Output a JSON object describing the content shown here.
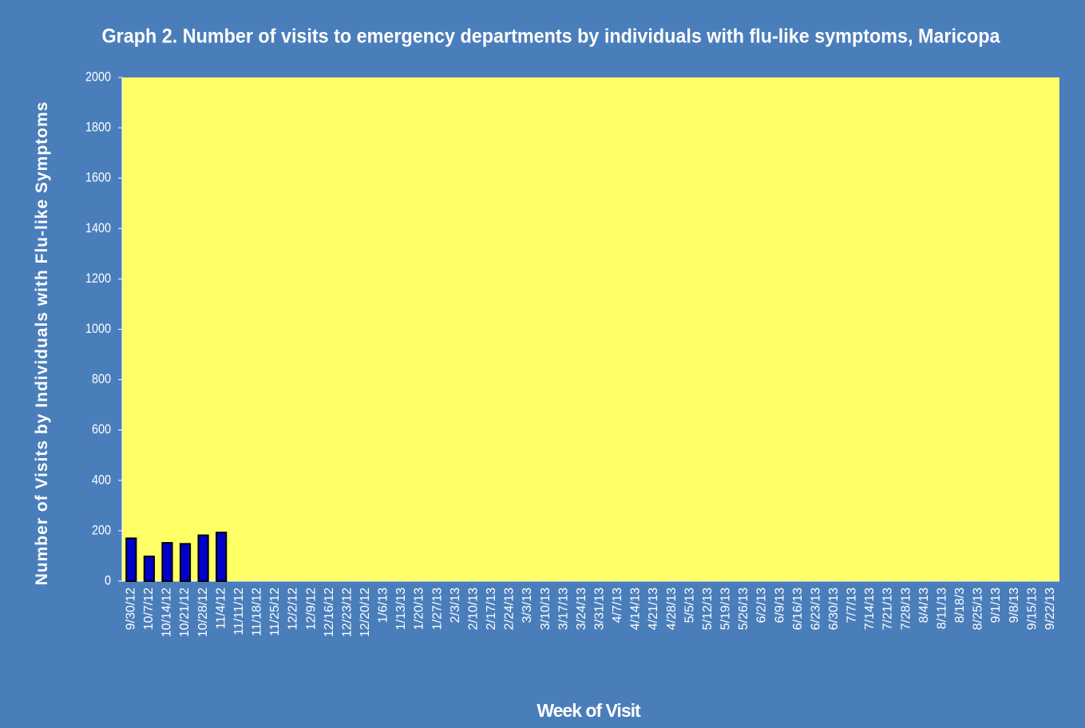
{
  "chart_data": {
    "type": "bar",
    "title": "Graph 2. Number of visits to emergency departments  by individuals  with flu-like symptoms,  Maricopa",
    "xlabel": "Week of Visit",
    "ylabel": "Number of Visits by Individuals with Flu-like Symptoms",
    "categories": [
      "9/30/12",
      "10/7/12",
      "10/14/12",
      "10/21/12",
      "10/28/12",
      "11/4/12",
      "11/11/12",
      "11/18/12",
      "11/25/12",
      "12/2/12",
      "12/9/12",
      "12/16/12",
      "12/23/12",
      "12/20/12",
      "1/6/13",
      "1/13/13",
      "1/20/13",
      "1/27/13",
      "2/3/13",
      "2/10/13",
      "2/17/13",
      "2/24/13",
      "3/3/13",
      "3/10/13",
      "3/17/13",
      "3/24/13",
      "3/31/13",
      "4/7/13",
      "4/14/13",
      "4/21/13",
      "4/28/13",
      "5/5/13",
      "5/12/13",
      "5/19/13",
      "5/26/13",
      "6/2/13",
      "6/9/13",
      "6/16/13",
      "6/23/13",
      "6/30/13",
      "7/7/13",
      "7/14/13",
      "7/21/13",
      "7/28/13",
      "8/4/13",
      "8/11/13",
      "8/18/3",
      "8/25/13",
      "9/1/13",
      "9/8/13",
      "9/15/13",
      "9/22/13"
    ],
    "values": [
      170,
      98,
      152,
      148,
      182,
      193,
      null,
      null,
      null,
      null,
      null,
      null,
      null,
      null,
      null,
      null,
      null,
      null,
      null,
      null,
      null,
      null,
      null,
      null,
      null,
      null,
      null,
      null,
      null,
      null,
      null,
      null,
      null,
      null,
      null,
      null,
      null,
      null,
      null,
      null,
      null,
      null,
      null,
      null,
      null,
      null,
      null,
      null,
      null,
      null,
      null,
      null
    ],
    "color": "#0000cc",
    "ylim": [
      0,
      2000
    ],
    "yticks": [
      0,
      200,
      400,
      600,
      800,
      1000,
      1200,
      1400,
      1600,
      1800,
      2000
    ]
  }
}
